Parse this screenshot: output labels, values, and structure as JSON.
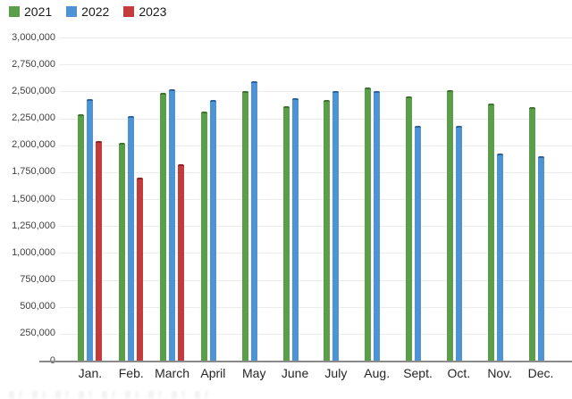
{
  "legend": {
    "items": [
      {
        "label": "2021",
        "color": "#5b9e49",
        "cap": "#3e7330"
      },
      {
        "label": "2022",
        "color": "#4e94d4",
        "cap": "#2b639c"
      },
      {
        "label": "2023",
        "color": "#c53b3c",
        "cap": "#8c2424"
      }
    ]
  },
  "y_axis": {
    "tick_labels": [
      "3,000,000",
      "2,750,000",
      "2,500,000",
      "2,250,000",
      "2,000,000",
      "1,750,000",
      "1,500,000",
      "1,250,000",
      "1,000,000",
      "750,000",
      "500,000",
      "250,000",
      "0"
    ]
  },
  "chart_data": {
    "type": "bar",
    "title": "",
    "categories": [
      "Jan.",
      "Feb.",
      "March",
      "April",
      "May",
      "June",
      "July",
      "Aug.",
      "Sept.",
      "Oct.",
      "Nov.",
      "Dec."
    ],
    "series": [
      {
        "name": "2021",
        "color": "#5b9e49",
        "cap_color": "#3e7330",
        "values": [
          2290000,
          2020000,
          2490000,
          2310000,
          2500000,
          2360000,
          2420000,
          2540000,
          2450000,
          2510000,
          2390000,
          2350000
        ]
      },
      {
        "name": "2022",
        "color": "#4e94d4",
        "cap_color": "#2b639c",
        "values": [
          2430000,
          2270000,
          2520000,
          2420000,
          2590000,
          2440000,
          2500000,
          2500000,
          2180000,
          2180000,
          1920000,
          1900000
        ]
      },
      {
        "name": "2023",
        "color": "#c53b3c",
        "cap_color": "#8c2424",
        "values": [
          2040000,
          1700000,
          1820000,
          null,
          null,
          null,
          null,
          null,
          null,
          null,
          null,
          null
        ]
      }
    ],
    "xlabel": "",
    "ylabel": "",
    "ylim": [
      0,
      3000000
    ],
    "ytick_step": 250000,
    "grid": true,
    "legend_position": "top-left"
  }
}
